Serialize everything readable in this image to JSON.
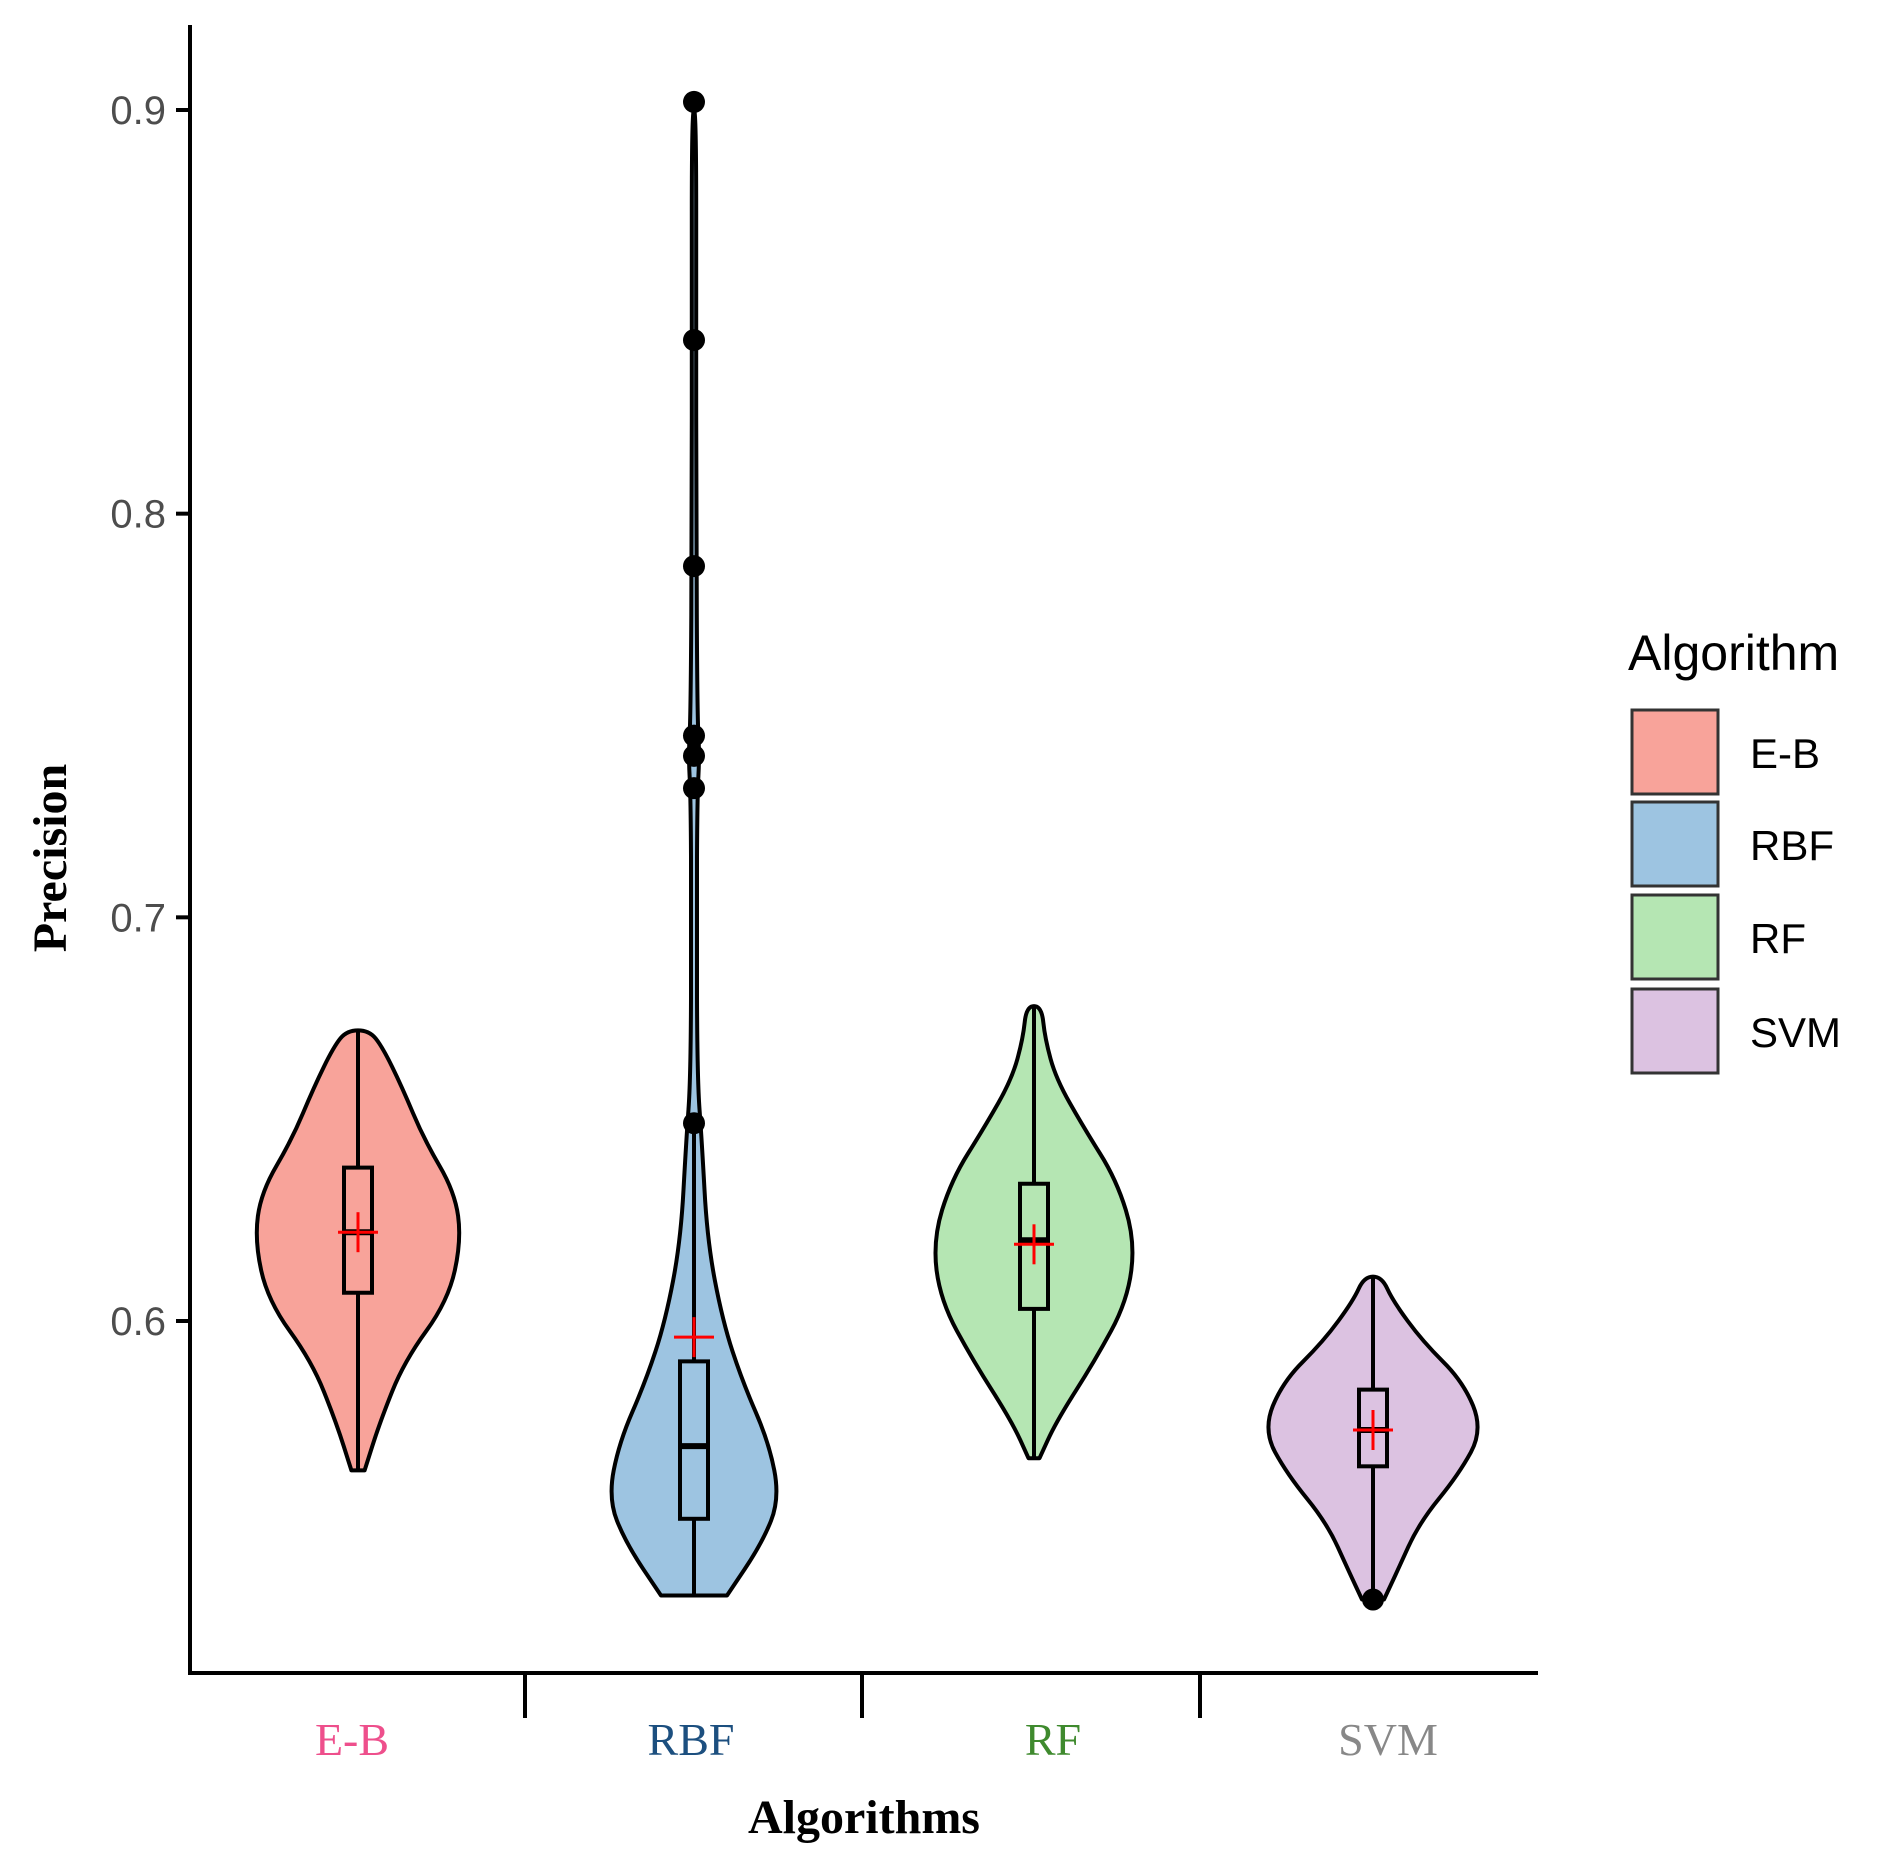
{
  "chart_data": {
    "type": "violin",
    "xlabel": "Algorithms",
    "ylabel": "Precision",
    "ylim": [
      0.513,
      0.92
    ],
    "yticks": [
      0.6,
      0.7,
      0.8,
      0.9
    ],
    "ytick_labels": [
      "0.6",
      "0.7",
      "0.8",
      "0.9"
    ],
    "categories": [
      "E-B",
      "RBF",
      "RF",
      "SVM"
    ],
    "category_label_colors": [
      "#ee4f8c",
      "#1c4f7f",
      "#3f8a2e",
      "#888888"
    ],
    "legend": {
      "title": "Algorithm",
      "entries": [
        "E-B",
        "RBF",
        "RF",
        "SVM"
      ]
    },
    "series": [
      {
        "name": "E-B",
        "fill": "#f8a39a",
        "min": 0.563,
        "q1": 0.607,
        "median": 0.622,
        "q3": 0.638,
        "max": 0.672,
        "mean": 0.622,
        "outliers": [],
        "density": [
          [
            0.563,
            0.06
          ],
          [
            0.575,
            0.2
          ],
          [
            0.59,
            0.42
          ],
          [
            0.605,
            0.82
          ],
          [
            0.62,
            0.94
          ],
          [
            0.632,
            0.88
          ],
          [
            0.645,
            0.6
          ],
          [
            0.658,
            0.4
          ],
          [
            0.668,
            0.22
          ],
          [
            0.672,
            0.1
          ]
        ]
      },
      {
        "name": "RBF",
        "fill": "#9dc4e1",
        "min": 0.532,
        "q1": 0.551,
        "median": 0.569,
        "q3": 0.59,
        "max": 0.649,
        "mean": 0.596,
        "outliers": [
          0.649,
          0.732,
          0.74,
          0.745,
          0.787,
          0.843,
          0.902
        ],
        "density": [
          [
            0.532,
            0.3
          ],
          [
            0.545,
            0.62
          ],
          [
            0.556,
            0.78
          ],
          [
            0.57,
            0.68
          ],
          [
            0.585,
            0.44
          ],
          [
            0.6,
            0.26
          ],
          [
            0.62,
            0.12
          ],
          [
            0.645,
            0.07
          ],
          [
            0.66,
            0.03
          ],
          [
            0.7,
            0.025
          ],
          [
            0.73,
            0.03
          ],
          [
            0.74,
            0.05
          ],
          [
            0.75,
            0.03
          ],
          [
            0.8,
            0.02
          ],
          [
            0.85,
            0.02
          ],
          [
            0.9,
            0.02
          ]
        ]
      },
      {
        "name": "RF",
        "fill": "#b5e6b3",
        "min": 0.566,
        "q1": 0.603,
        "median": 0.62,
        "q3": 0.634,
        "max": 0.678,
        "mean": 0.619,
        "outliers": [],
        "density": [
          [
            0.566,
            0.05
          ],
          [
            0.575,
            0.2
          ],
          [
            0.59,
            0.55
          ],
          [
            0.605,
            0.85
          ],
          [
            0.62,
            0.92
          ],
          [
            0.635,
            0.75
          ],
          [
            0.648,
            0.45
          ],
          [
            0.66,
            0.2
          ],
          [
            0.67,
            0.1
          ],
          [
            0.678,
            0.07
          ]
        ]
      },
      {
        "name": "SVM",
        "fill": "#dcc2e1",
        "min": 0.531,
        "q1": 0.564,
        "median": 0.573,
        "q3": 0.583,
        "max": 0.611,
        "mean": 0.573,
        "outliers": [
          0.531
        ],
        "density": [
          [
            0.531,
            0.1
          ],
          [
            0.538,
            0.22
          ],
          [
            0.55,
            0.42
          ],
          [
            0.562,
            0.78
          ],
          [
            0.573,
            1.0
          ],
          [
            0.585,
            0.82
          ],
          [
            0.595,
            0.45
          ],
          [
            0.605,
            0.18
          ],
          [
            0.611,
            0.08
          ]
        ]
      }
    ]
  }
}
